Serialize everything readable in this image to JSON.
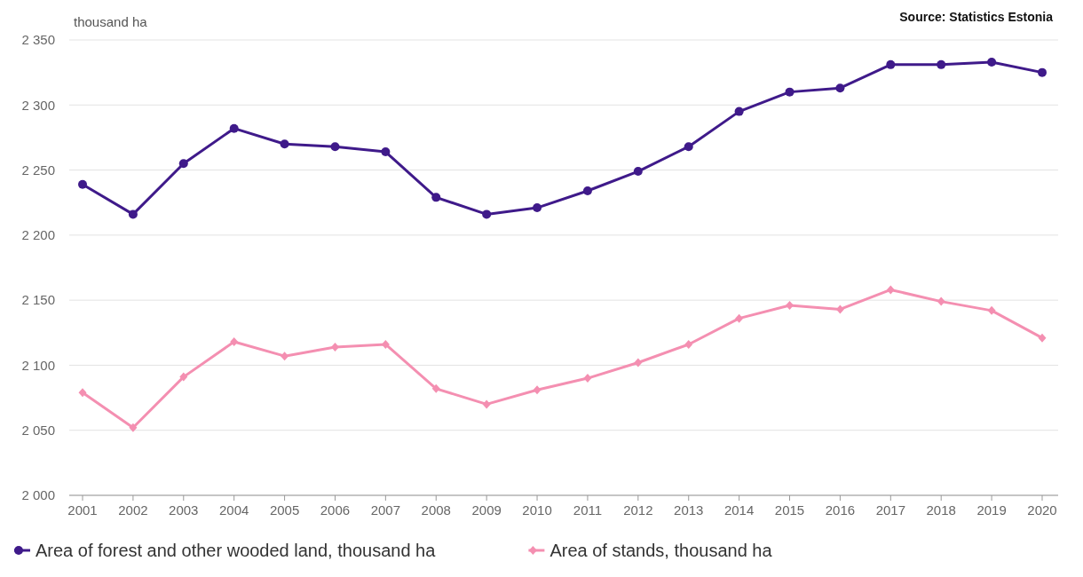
{
  "chart_data": {
    "type": "line",
    "ylabel": "thousand ha",
    "annotations": [
      "Source: Statistics Estonia"
    ],
    "categories": [
      "2001",
      "2002",
      "2003",
      "2004",
      "2005",
      "2006",
      "2007",
      "2008",
      "2009",
      "2010",
      "2011",
      "2012",
      "2013",
      "2014",
      "2015",
      "2016",
      "2017",
      "2018",
      "2019",
      "2020"
    ],
    "series": [
      {
        "name": "Area of forest and other wooded land, thousand ha",
        "color": "#3f1a8a",
        "marker": "circle",
        "values": [
          2239,
          2216,
          2255,
          2282,
          2270,
          2268,
          2264,
          2229,
          2216,
          2221,
          2234,
          2249,
          2268,
          2295,
          2310,
          2313,
          2331,
          2331,
          2333,
          2325
        ]
      },
      {
        "name": "Area of stands, thousand ha",
        "color": "#f48fb1",
        "marker": "diamond",
        "values": [
          2079,
          2052,
          2091,
          2118,
          2107,
          2114,
          2116,
          2082,
          2070,
          2081,
          2090,
          2102,
          2116,
          2136,
          2146,
          2143,
          2158,
          2149,
          2142,
          2121
        ]
      }
    ],
    "ylim": [
      2000,
      2350
    ],
    "yticks": [
      {
        "value": 2000,
        "label": "2 000"
      },
      {
        "value": 2050,
        "label": "2 050"
      },
      {
        "value": 2100,
        "label": "2 100"
      },
      {
        "value": 2150,
        "label": "2 150"
      },
      {
        "value": 2200,
        "label": "2 200"
      },
      {
        "value": 2250,
        "label": "2 250"
      },
      {
        "value": 2300,
        "label": "2 300"
      },
      {
        "value": 2350,
        "label": "2 350"
      }
    ],
    "grid": "y",
    "legend": "bottom",
    "line_style": "solid"
  }
}
